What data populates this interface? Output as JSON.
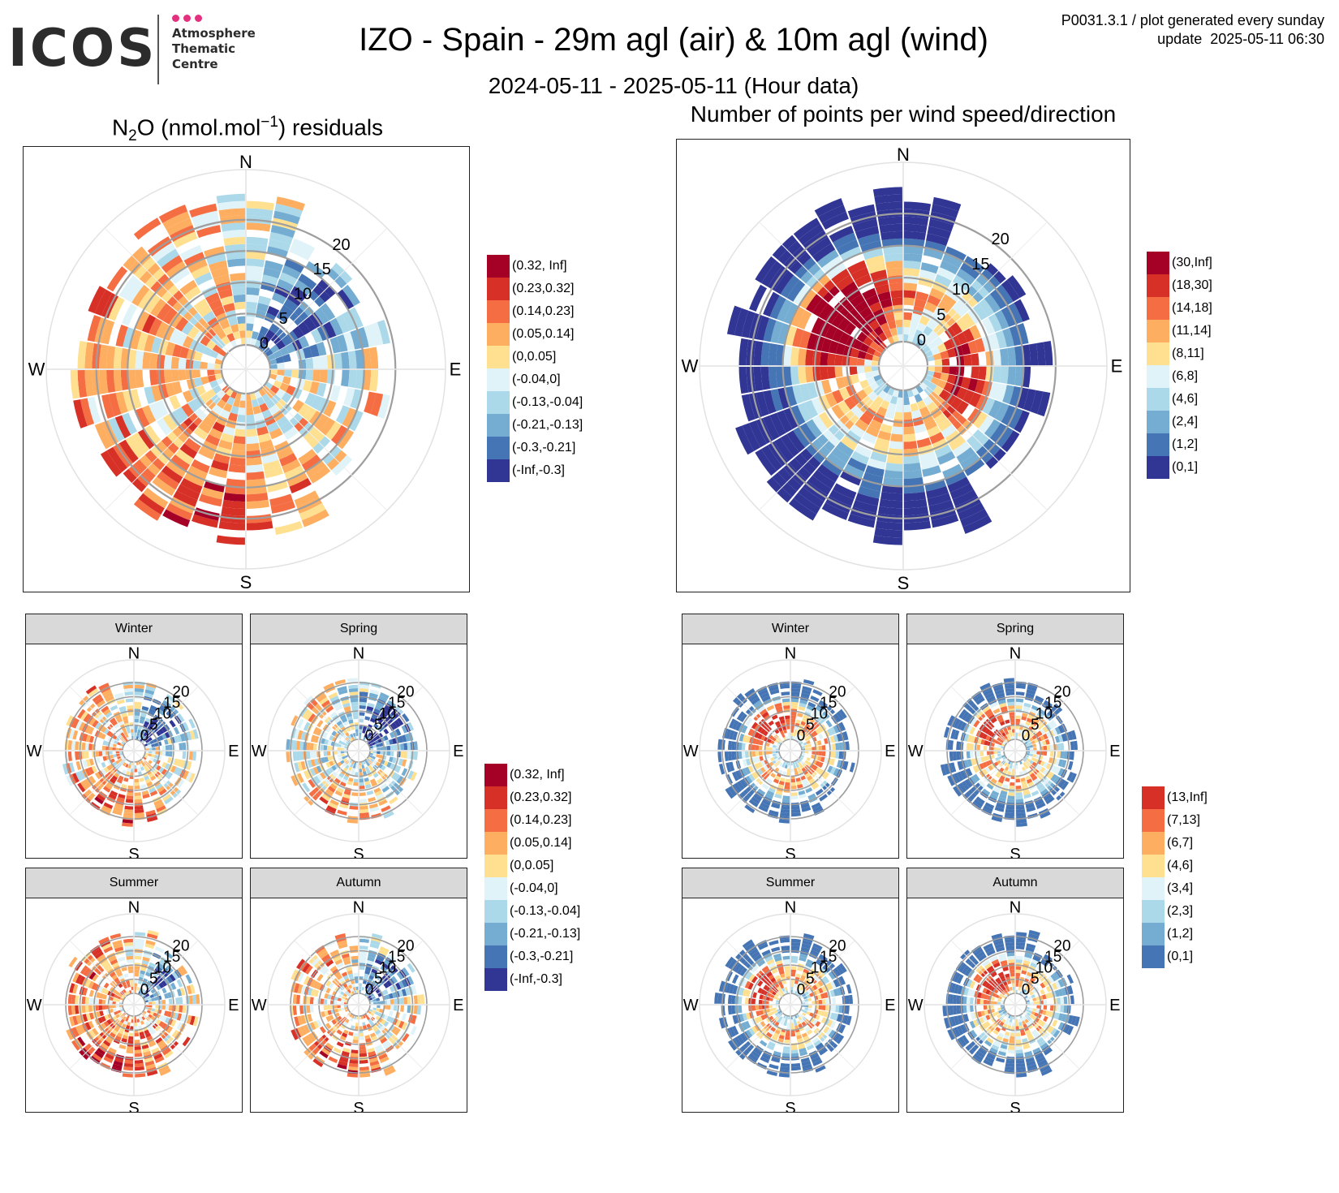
{
  "logo": {
    "brand": "ICOS",
    "subtitle": "Atmosphere\nThematic\nCentre",
    "dot_colors": [
      "#e4317f",
      "#e4317f",
      "#e4317f"
    ]
  },
  "header": {
    "title": "IZO - Spain - 29m agl (air) & 10m agl (wind)",
    "subtitle": "2024-05-11 - 2025-05-11 (Hour data)",
    "meta_line1": "P0031.3.1 / plot generated every sunday",
    "meta_line2": "update  2025-05-11 06:30"
  },
  "panels": {
    "residuals": {
      "title_prefix": "N",
      "title_sub": "2",
      "title_mid": "O (nmol.mol",
      "title_sup": "−1",
      "title_suffix": ") residuals"
    },
    "points": {
      "title": "Number of points per wind speed/direction"
    }
  },
  "compass": {
    "north": "N",
    "south": "S",
    "east": "E",
    "west": "W"
  },
  "speed_ticks": [
    "0",
    "5",
    "10",
    "15",
    "20"
  ],
  "seasons": [
    "Winter",
    "Spring",
    "Summer",
    "Autumn"
  ],
  "legend_residuals": {
    "labels": [
      "(0.32, Inf]",
      "(0.23,0.32]",
      "(0.14,0.23]",
      "(0.05,0.14]",
      "(0,0.05]",
      "(-0.04,0]",
      "(-0.13,-0.04]",
      "(-0.21,-0.13]",
      "(-0.3,-0.21]",
      "(-Inf,-0.3]"
    ],
    "colors": [
      "#a50026",
      "#d73027",
      "#f46d43",
      "#fdae61",
      "#fee090",
      "#e0f3f8",
      "#abd9e9",
      "#74add1",
      "#4575b4",
      "#313695"
    ]
  },
  "legend_points": {
    "labels": [
      "(30,Inf]",
      "(18,30]",
      "(14,18]",
      "(11,14]",
      "(8,11]",
      "(6,8]",
      "(4,6]",
      "(2,4]",
      "(1,2]",
      "(0,1]"
    ],
    "colors": [
      "#a50026",
      "#d73027",
      "#f46d43",
      "#fdae61",
      "#fee090",
      "#e0f3f8",
      "#abd9e9",
      "#74add1",
      "#4575b4",
      "#313695"
    ]
  },
  "legend_points_season": {
    "labels": [
      "(13,Inf]",
      "(7,13]",
      "(6,7]",
      "(4,6]",
      "(3,4]",
      "(2,3]",
      "(1,2]",
      "(0,1]"
    ],
    "colors": [
      "#d73027",
      "#f46d43",
      "#fdae61",
      "#fee090",
      "#e0f3f8",
      "#abd9e9",
      "#74add1",
      "#4575b4"
    ]
  },
  "chart_data": [
    {
      "type": "heatmap",
      "name_printed": "N2O (nmol.mol-1) residuals",
      "coordinate": "polar",
      "r_axis": "wind speed",
      "r_ticks": [
        0,
        5,
        10,
        15,
        20
      ],
      "theta_labels": [
        "N",
        "E",
        "S",
        "W"
      ],
      "pattern": "mostly negative (blue) to the NE at 5-15, positive (orange/red) to the S and SW at 10-20",
      "sectors_emphasis": {
        "NE": "negative",
        "S": "positive",
        "SW": "positive",
        "NW": "mixed"
      }
    },
    {
      "type": "heatmap",
      "name_printed": "Number of points per wind speed/direction",
      "coordinate": "polar",
      "r_axis": "wind speed",
      "r_ticks": [
        0,
        5,
        10,
        15,
        20
      ],
      "theta_labels": [
        "N",
        "E",
        "S",
        "W"
      ],
      "pattern": "highest counts (30,Inf] to the NW at 3-12, high counts (18,30] to the E at 3-8, low counts at outer rings",
      "sectors_emphasis": {
        "NW": "high",
        "E": "high",
        "S": "low",
        "outer": "low"
      }
    },
    {
      "type": "heatmap",
      "facets": [
        "Winter",
        "Spring",
        "Summer",
        "Autumn"
      ],
      "variable": "N2O residuals",
      "coordinate": "polar",
      "r_ticks": [
        0,
        5,
        10,
        15,
        20
      ]
    },
    {
      "type": "heatmap",
      "facets": [
        "Winter",
        "Spring",
        "Summer",
        "Autumn"
      ],
      "variable": "number of points",
      "coordinate": "polar",
      "r_ticks": [
        0,
        5,
        10,
        15,
        20
      ]
    }
  ]
}
